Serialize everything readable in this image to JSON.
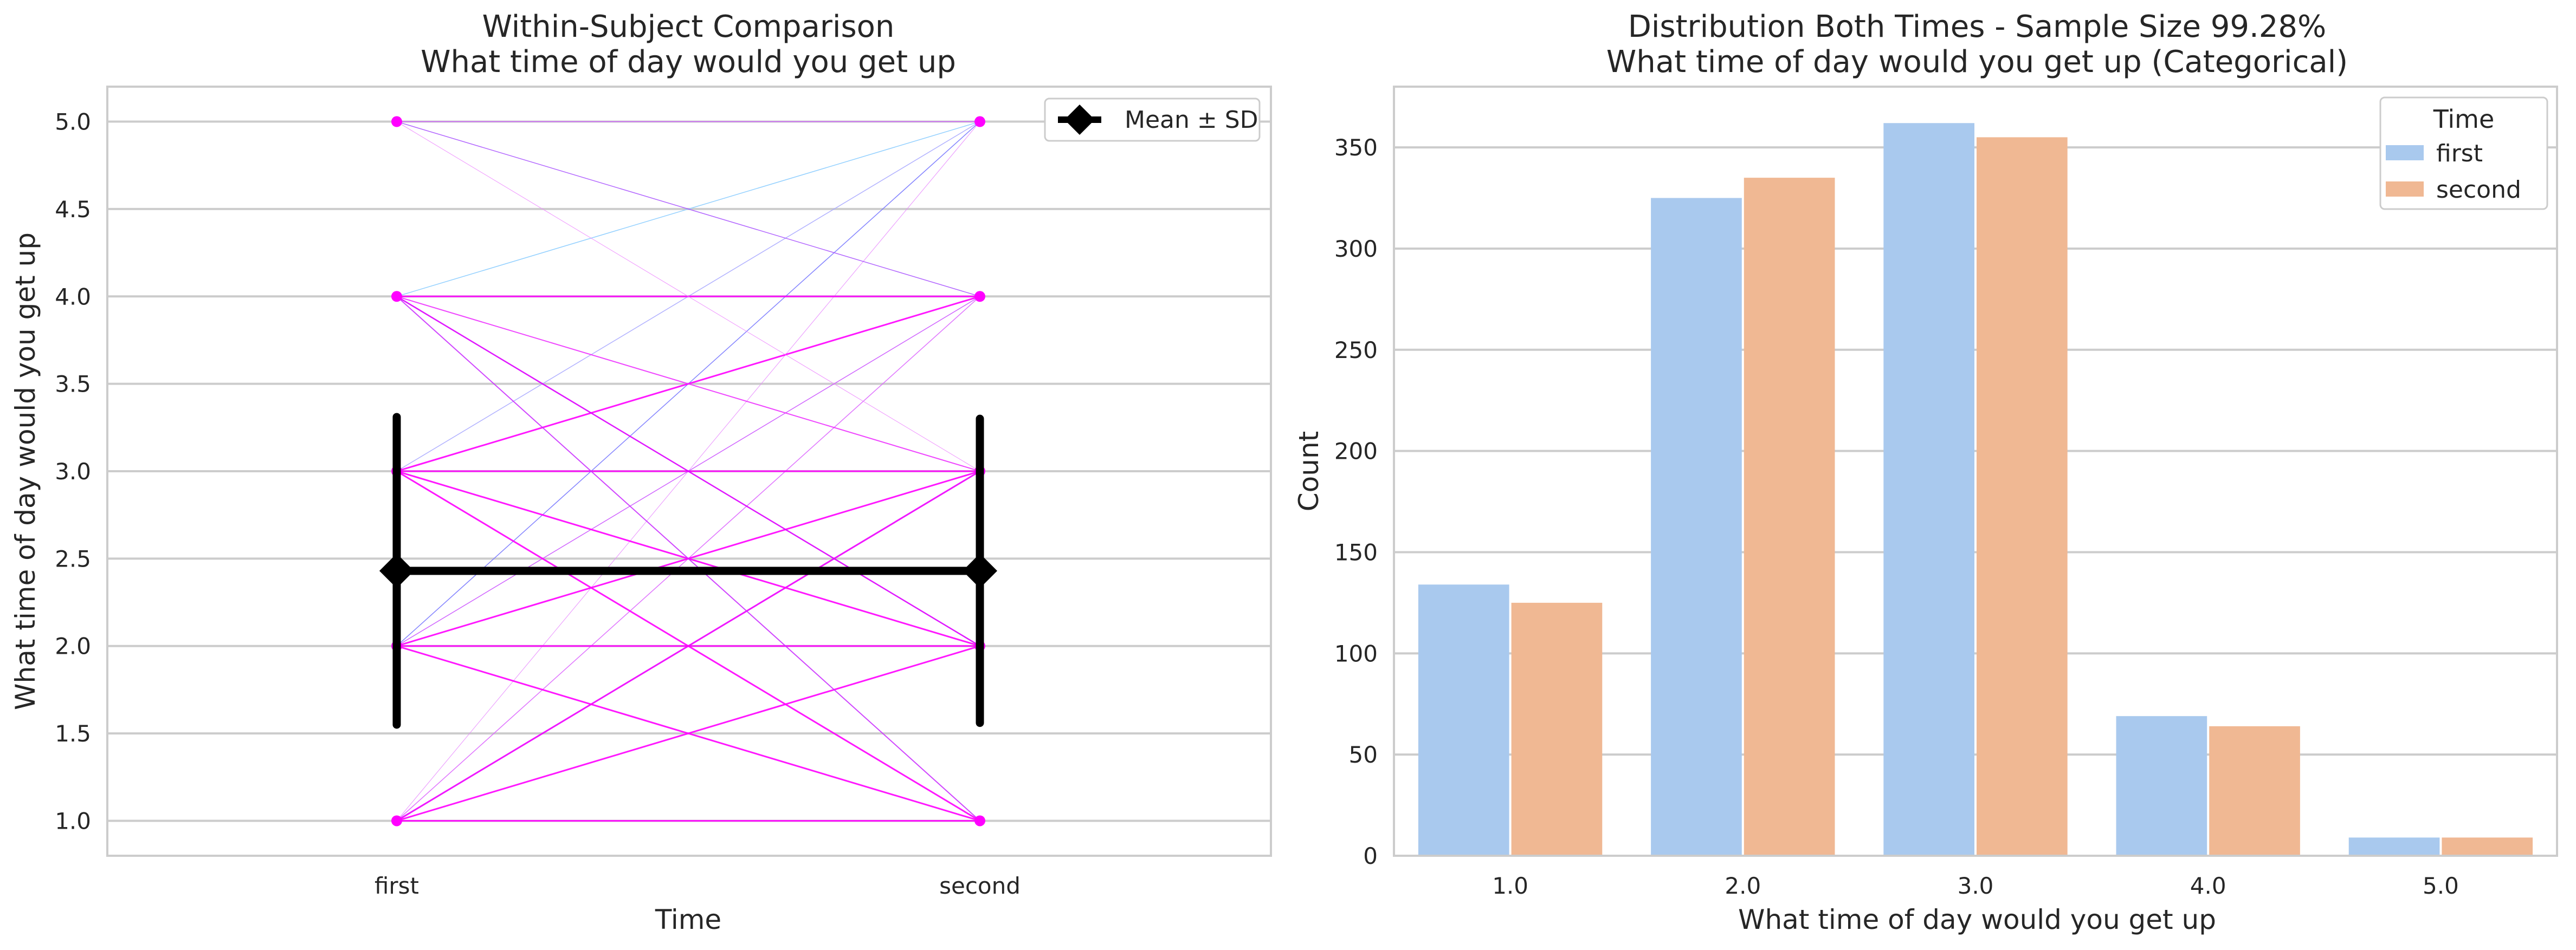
{
  "chart_data": [
    {
      "type": "line",
      "title": "Within-Subject Comparison",
      "subtitle": "What time of day would you get up",
      "xlabel": "Time",
      "ylabel": "What time of day would you get up",
      "categories": [
        "first",
        "second"
      ],
      "yticks": [
        "1.0",
        "1.5",
        "2.0",
        "2.5",
        "3.0",
        "3.5",
        "4.0",
        "4.5",
        "5.0"
      ],
      "ylim": [
        0.8,
        5.2
      ],
      "grid": true,
      "legend": {
        "label": "Mean ± SD",
        "placement": "top-right"
      },
      "mean": [
        2.43,
        2.43
      ],
      "sd": [
        0.88,
        0.87
      ],
      "point_values": [
        1,
        2,
        3,
        4,
        5
      ],
      "transitions": [
        {
          "from": 1,
          "to": 1,
          "color": "#ff00ff",
          "weight": 3
        },
        {
          "from": 1,
          "to": 2,
          "color": "#ff00ff",
          "weight": 3
        },
        {
          "from": 1,
          "to": 3,
          "color": "#ee00ff",
          "weight": 3
        },
        {
          "from": 1,
          "to": 4,
          "color": "#dd66ff",
          "weight": 1.5
        },
        {
          "from": 1,
          "to": 5,
          "color": "#e888ff",
          "weight": 1
        },
        {
          "from": 2,
          "to": 1,
          "color": "#ff00ff",
          "weight": 3
        },
        {
          "from": 2,
          "to": 2,
          "color": "#ff00ff",
          "weight": 3
        },
        {
          "from": 2,
          "to": 3,
          "color": "#ff00ff",
          "weight": 3
        },
        {
          "from": 2,
          "to": 4,
          "color": "#cc55ff",
          "weight": 1.5
        },
        {
          "from": 2,
          "to": 5,
          "color": "#7777ff",
          "weight": 1.5
        },
        {
          "from": 3,
          "to": 1,
          "color": "#ff00ff",
          "weight": 3
        },
        {
          "from": 3,
          "to": 2,
          "color": "#ff00ff",
          "weight": 3
        },
        {
          "from": 3,
          "to": 3,
          "color": "#ff00ff",
          "weight": 3
        },
        {
          "from": 3,
          "to": 4,
          "color": "#ff00ff",
          "weight": 3
        },
        {
          "from": 3,
          "to": 5,
          "color": "#aaaaff",
          "weight": 1.5
        },
        {
          "from": 4,
          "to": 1,
          "color": "#cc33ff",
          "weight": 2
        },
        {
          "from": 4,
          "to": 2,
          "color": "#dd00ff",
          "weight": 2.5
        },
        {
          "from": 4,
          "to": 3,
          "color": "#ee33ff",
          "weight": 2
        },
        {
          "from": 4,
          "to": 4,
          "color": "#ff00ff",
          "weight": 3
        },
        {
          "from": 4,
          "to": 5,
          "color": "#88ccff",
          "weight": 1.5
        },
        {
          "from": 5,
          "to": 3,
          "color": "#ee88ff",
          "weight": 1
        },
        {
          "from": 5,
          "to": 4,
          "color": "#aa55ff",
          "weight": 1.5
        },
        {
          "from": 5,
          "to": 5,
          "color": "#cc55ff",
          "weight": 1.5
        }
      ],
      "colors": {
        "point": "#ff00ff",
        "mean": "#000000"
      }
    },
    {
      "type": "bar",
      "title": "Distribution Both Times - Sample Size 99.28%",
      "subtitle": "What time of day would you get up (Categorical)",
      "xlabel": "What time of day would you get up",
      "ylabel": "Count",
      "categories": [
        "1.0",
        "2.0",
        "3.0",
        "4.0",
        "5.0"
      ],
      "yticks": [
        "0",
        "50",
        "100",
        "150",
        "200",
        "250",
        "300",
        "350"
      ],
      "ylim": [
        0,
        380
      ],
      "grid": true,
      "legend": {
        "title": "Time",
        "placement": "top-right"
      },
      "series": [
        {
          "name": "first",
          "color": "#a9c9ee",
          "values": [
            134,
            325,
            362,
            69,
            9
          ]
        },
        {
          "name": "second",
          "color": "#f0b893",
          "values": [
            125,
            335,
            355,
            64,
            9
          ]
        }
      ]
    }
  ]
}
